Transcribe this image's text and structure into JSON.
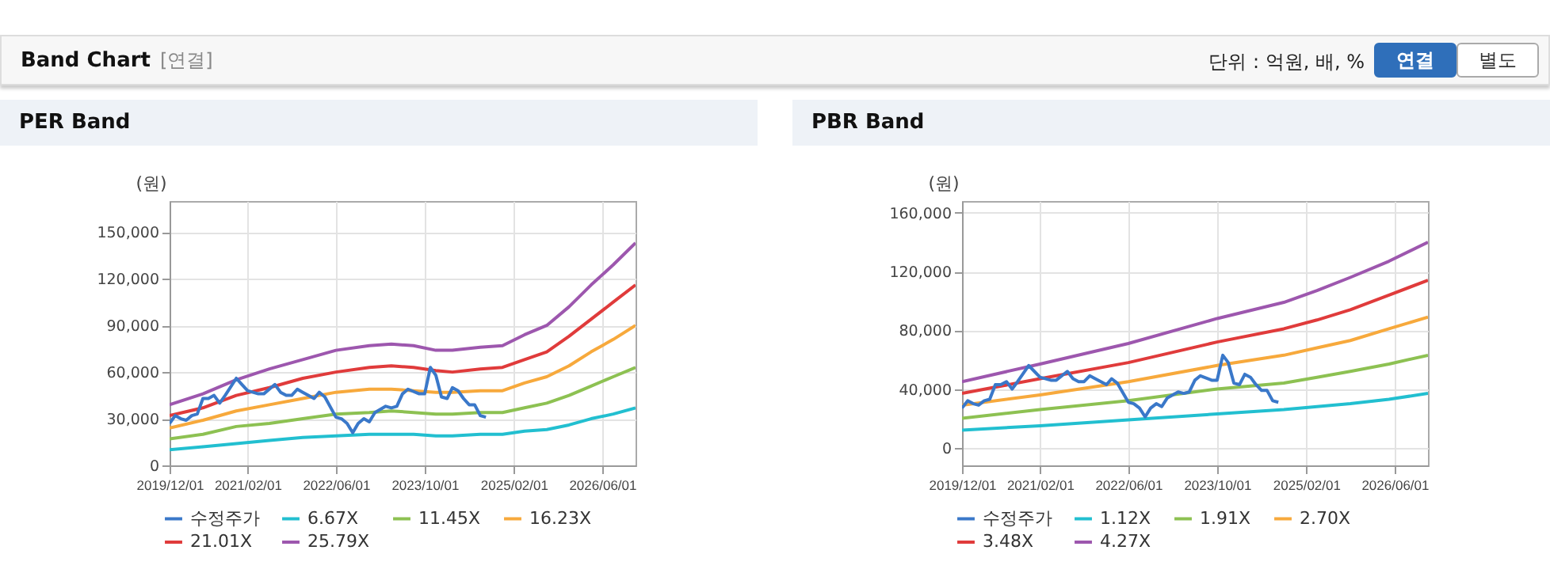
{
  "chart_data": [
    {
      "type": "other",
      "title": "Band Chart",
      "subtitle": "[연결]",
      "annotations": [
        "단위 : 억원, 배, %",
        "연결",
        "별도"
      ]
    },
    {
      "type": "line",
      "title": "PER Band",
      "ylabel": "(원)",
      "x": [
        "2019-12",
        "2020-06",
        "2020-12",
        "2021-06",
        "2021-12",
        "2022-06",
        "2022-12",
        "2023-04",
        "2023-08",
        "2023-12",
        "2024-03",
        "2024-08",
        "2024-12",
        "2025-04",
        "2025-08",
        "2025-12",
        "2026-04",
        "2026-08",
        "2026-12"
      ],
      "series": [
        {
          "name": "수정주가",
          "color": "#3a78c9",
          "x": [
            "2019-12",
            "2020-01",
            "2020-02",
            "2020-03",
            "2020-04",
            "2020-05",
            "2020-06",
            "2020-07",
            "2020-08",
            "2020-09",
            "2020-10",
            "2020-12",
            "2021-01",
            "2021-02",
            "2021-04",
            "2021-05",
            "2021-07",
            "2021-08",
            "2021-09",
            "2021-10",
            "2021-11",
            "2021-12",
            "2022-02",
            "2022-03",
            "2022-04",
            "2022-06",
            "2022-07",
            "2022-08",
            "2022-09",
            "2022-10",
            "2022-11",
            "2022-12",
            "2023-01",
            "2023-03",
            "2023-04",
            "2023-05",
            "2023-06",
            "2023-07",
            "2023-09",
            "2023-10",
            "2023-11",
            "2023-12",
            "2024-01",
            "2024-02",
            "2024-03",
            "2024-04",
            "2024-05",
            "2024-06",
            "2024-07",
            "2024-08",
            "2024-09"
          ],
          "values": [
            27000,
            32000,
            30000,
            29000,
            32000,
            33000,
            43000,
            43000,
            45000,
            40000,
            45000,
            56000,
            52000,
            48000,
            46000,
            46000,
            52000,
            47000,
            45000,
            45000,
            49000,
            47000,
            43000,
            47000,
            44000,
            31000,
            30000,
            27000,
            21000,
            27000,
            30000,
            28000,
            34000,
            38000,
            37000,
            38000,
            46000,
            49000,
            46000,
            46000,
            63000,
            58000,
            44000,
            43000,
            50000,
            48000,
            43000,
            39000,
            39000,
            32000,
            31000
          ]
        },
        {
          "name": "6.67X",
          "color": "#22bfd0",
          "values": [
            10000,
            12000,
            14000,
            16000,
            18000,
            19000,
            20000,
            20000,
            20000,
            19000,
            19000,
            20000,
            20000,
            22000,
            23000,
            26000,
            30000,
            33000,
            37000
          ]
        },
        {
          "name": "11.45X",
          "color": "#8dc152",
          "values": [
            17000,
            20000,
            25000,
            27000,
            30000,
            33000,
            34000,
            35000,
            34000,
            33000,
            33000,
            34000,
            34000,
            37000,
            40000,
            45000,
            51000,
            57000,
            63000
          ]
        },
        {
          "name": "16.23X",
          "color": "#f7a93c",
          "values": [
            24000,
            29000,
            35000,
            39000,
            43000,
            47000,
            49000,
            49000,
            48000,
            47000,
            47000,
            48000,
            48000,
            53000,
            57000,
            64000,
            73000,
            81000,
            90000
          ]
        },
        {
          "name": "21.01X",
          "color": "#e03b3b",
          "values": [
            32000,
            37000,
            45000,
            50000,
            56000,
            60000,
            63000,
            64000,
            63000,
            61000,
            60000,
            62000,
            63000,
            68000,
            73000,
            83000,
            94000,
            105000,
            116000
          ]
        },
        {
          "name": "25.79X",
          "color": "#9d57ae",
          "values": [
            39000,
            46000,
            55000,
            62000,
            68000,
            74000,
            77000,
            78000,
            77000,
            74000,
            74000,
            76000,
            77000,
            84000,
            90000,
            102000,
            116000,
            129000,
            143000
          ]
        }
      ],
      "xlim": [
        "2019-12-01",
        "2026-12-01"
      ],
      "xticks": [
        {
          "value": "2019-12-01",
          "label": "2019/12/01"
        },
        {
          "value": "2021-02-01",
          "label": "2021/02/01"
        },
        {
          "value": "2022-06-01",
          "label": "2022/06/01"
        },
        {
          "value": "2023-10-01",
          "label": "2023/10/01"
        },
        {
          "value": "2025-02-01",
          "label": "2025/02/01"
        },
        {
          "value": "2026-06-01",
          "label": "2026/06/01"
        }
      ],
      "ylim": [
        0,
        170000
      ],
      "yticks": [
        0,
        {
          "value": 30000,
          "label": "30,000"
        },
        {
          "value": 60000,
          "label": "60,000"
        },
        {
          "value": 90000,
          "label": "90,000"
        },
        {
          "value": 120000,
          "label": "120,000"
        },
        {
          "value": 150000,
          "label": "150,000"
        }
      ],
      "grid": true,
      "legend": "bottom",
      "marker": "none",
      "line_style": "solid"
    },
    {
      "type": "line",
      "title": "PBR Band",
      "ylabel": "(원)",
      "x": [
        "2019-12",
        "2021-02",
        "2022-06",
        "2023-10",
        "2024-10",
        "2025-04",
        "2025-10",
        "2026-05",
        "2026-12"
      ],
      "series": [
        {
          "name": "수정주가",
          "color": "#3a78c9",
          "x": [
            "2019-12",
            "2020-01",
            "2020-02",
            "2020-03",
            "2020-04",
            "2020-05",
            "2020-06",
            "2020-07",
            "2020-08",
            "2020-09",
            "2020-10",
            "2020-12",
            "2021-01",
            "2021-02",
            "2021-04",
            "2021-05",
            "2021-07",
            "2021-08",
            "2021-09",
            "2021-10",
            "2021-11",
            "2021-12",
            "2022-02",
            "2022-03",
            "2022-04",
            "2022-06",
            "2022-07",
            "2022-08",
            "2022-09",
            "2022-10",
            "2022-11",
            "2022-12",
            "2023-01",
            "2023-03",
            "2023-04",
            "2023-05",
            "2023-06",
            "2023-07",
            "2023-09",
            "2023-10",
            "2023-11",
            "2023-12",
            "2024-01",
            "2024-02",
            "2024-03",
            "2024-04",
            "2024-05",
            "2024-06",
            "2024-07",
            "2024-08",
            "2024-09"
          ],
          "values": [
            27000,
            32000,
            30000,
            29000,
            32000,
            33000,
            43000,
            43000,
            45000,
            40000,
            45000,
            56000,
            52000,
            48000,
            46000,
            46000,
            52000,
            47000,
            45000,
            45000,
            49000,
            47000,
            43000,
            47000,
            44000,
            31000,
            30000,
            27000,
            21000,
            27000,
            30000,
            28000,
            34000,
            38000,
            37000,
            38000,
            46000,
            49000,
            46000,
            46000,
            63000,
            58000,
            44000,
            43000,
            50000,
            48000,
            43000,
            39000,
            39000,
            32000,
            31000
          ]
        },
        {
          "name": "1.12X",
          "color": "#22bfd0",
          "values": [
            12000,
            15000,
            19000,
            23000,
            26000,
            28000,
            30000,
            33000,
            37000
          ]
        },
        {
          "name": "1.91X",
          "color": "#8dc152",
          "values": [
            20000,
            26000,
            32000,
            40000,
            44000,
            48000,
            52000,
            57000,
            63000
          ]
        },
        {
          "name": "2.70X",
          "color": "#f7a93c",
          "values": [
            29000,
            36000,
            45000,
            56000,
            63000,
            68000,
            73000,
            81000,
            89000
          ]
        },
        {
          "name": "3.48X",
          "color": "#e03b3b",
          "values": [
            37000,
            47000,
            58000,
            72000,
            81000,
            87000,
            94000,
            104000,
            114000
          ]
        },
        {
          "name": "4.27X",
          "color": "#9d57ae",
          "values": [
            45000,
            57000,
            71000,
            88000,
            99000,
            107000,
            116000,
            127000,
            140000
          ]
        }
      ],
      "xlim": [
        "2019-12-01",
        "2026-12-01"
      ],
      "xticks": [
        {
          "value": "2019-12-01",
          "label": "2019/12/01"
        },
        {
          "value": "2021-02-01",
          "label": "2021/02/01"
        },
        {
          "value": "2022-06-01",
          "label": "2022/06/01"
        },
        {
          "value": "2023-10-01",
          "label": "2023/10/01"
        },
        {
          "value": "2025-02-01",
          "label": "2025/02/01"
        },
        {
          "value": "2026-06-01",
          "label": "2026/06/01"
        }
      ],
      "ylim": [
        -12000,
        168000
      ],
      "yticks": [
        0,
        {
          "value": 40000,
          "label": "40,000"
        },
        {
          "value": 80000,
          "label": "80,000"
        },
        {
          "value": 120000,
          "label": "120,000"
        },
        {
          "value": 160000,
          "label": "160,000"
        }
      ],
      "grid": true,
      "legend": "bottom",
      "marker": "none",
      "line_style": "solid"
    }
  ]
}
